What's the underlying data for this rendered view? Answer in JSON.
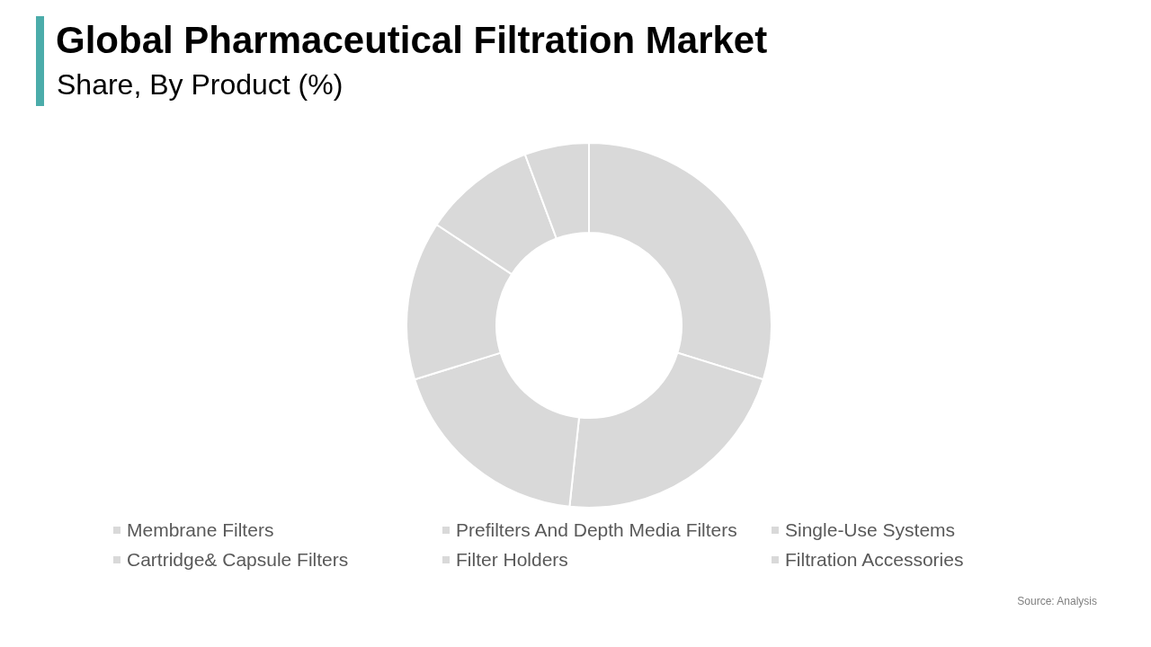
{
  "chart_data": {
    "type": "donut",
    "title": "Global Pharmaceutical Filtration Market",
    "subtitle": "Share, By Product (%)",
    "categories": [
      "Membrane Filters",
      "Prefilters And Depth Media Filters",
      "Single-Use Systems",
      "Cartridge& Capsule Filters",
      "Filter Holders",
      "Filtration Accessories"
    ],
    "values": [
      29.8,
      21.9,
      18.5,
      14.1,
      10.0,
      5.7
    ],
    "colors": [
      "#d9d9d9",
      "#d9d9d9",
      "#d9d9d9",
      "#d9d9d9",
      "#d9d9d9",
      "#d9d9d9"
    ],
    "legend": "bottom",
    "annotations": [
      "Source: Analysis"
    ]
  }
}
